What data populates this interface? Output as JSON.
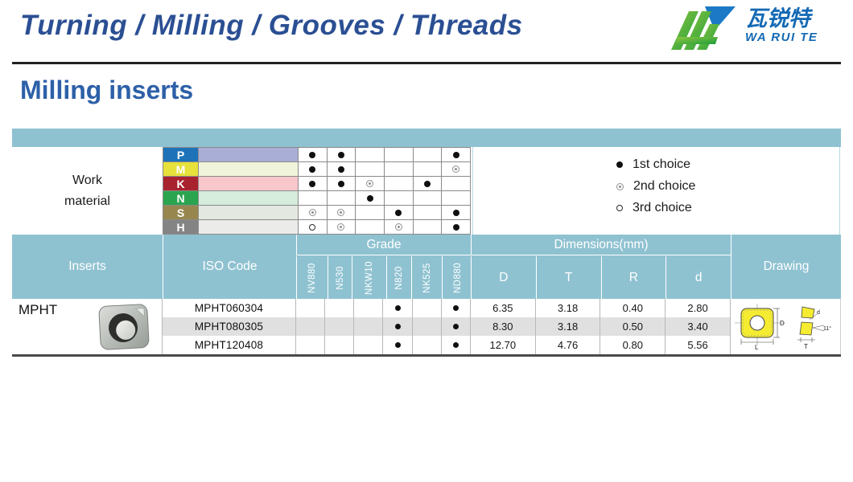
{
  "header": {
    "title": "Turning / Milling / Grooves / Threads",
    "logo_cn": "瓦锐特",
    "logo_en": "WA RUI TE"
  },
  "section": {
    "title": "Milling inserts"
  },
  "work_material": {
    "label_line1": "Work",
    "label_line2": "material",
    "rows": [
      {
        "code": "P",
        "label_color": "#1e73b8",
        "strip_color": "#a9aed6",
        "dots": [
          "1",
          "1",
          "",
          "",
          "",
          "1"
        ]
      },
      {
        "code": "M",
        "label_color": "#e6e13b",
        "strip_color": "#eff4da",
        "dots": [
          "1",
          "1",
          "",
          "",
          "",
          "2"
        ]
      },
      {
        "code": "K",
        "label_color": "#a8232e",
        "strip_color": "#f7c7cb",
        "dots": [
          "1",
          "1",
          "2",
          "",
          "1",
          ""
        ]
      },
      {
        "code": "N",
        "label_color": "#2aa44e",
        "strip_color": "#d6ecdc",
        "dots": [
          "",
          "",
          "1",
          "",
          "",
          ""
        ]
      },
      {
        "code": "S",
        "label_color": "#97874f",
        "strip_color": "#e3e9e0",
        "dots": [
          "2",
          "2",
          "",
          "1",
          "",
          "1"
        ]
      },
      {
        "code": "H",
        "label_color": "#848484",
        "strip_color": "#ebebe9",
        "dots": [
          "3",
          "2",
          "",
          "2",
          "",
          "1"
        ]
      }
    ]
  },
  "legend": [
    {
      "type": "1",
      "label": "1st choice"
    },
    {
      "type": "2",
      "label": "2nd choice"
    },
    {
      "type": "3",
      "label": "3rd choice"
    }
  ],
  "table": {
    "header_inserts": "Inserts",
    "header_iso": "ISO Code",
    "header_grade": "Grade",
    "header_dimensions": "Dimensions(mm)",
    "header_drawing": "Drawing",
    "grades": [
      "NV880",
      "N530",
      "NKW10",
      "N820",
      "NK525",
      "ND880"
    ],
    "dim_cols": [
      "D",
      "T",
      "R",
      "d"
    ],
    "insert_name": "MPHT",
    "rows": [
      {
        "iso": "MPHT060304",
        "dots": [
          "",
          "",
          "",
          "1",
          "",
          "1"
        ],
        "dims": [
          "6.35",
          "3.18",
          "0.40",
          "2.80"
        ]
      },
      {
        "iso": "MPHT080305",
        "dots": [
          "",
          "",
          "",
          "1",
          "",
          "1"
        ],
        "dims": [
          "8.30",
          "3.18",
          "0.50",
          "3.40"
        ]
      },
      {
        "iso": "MPHT120408",
        "dots": [
          "",
          "",
          "",
          "1",
          "",
          "1"
        ],
        "dims": [
          "12.70",
          "4.76",
          "0.80",
          "5.56"
        ]
      }
    ],
    "drawing": {
      "dim_D": "D",
      "dim_L": "L",
      "dim_d": "d",
      "dim_T": "T",
      "angle": "11°"
    }
  },
  "colors": {
    "teal_header": "#8fc2d1",
    "title_blue": "#2b4f93",
    "section_blue": "#2d60a8",
    "logo_blue": "#1469b4",
    "logo_green": "#35a637",
    "zebra_gray": "#e0e0e0"
  }
}
